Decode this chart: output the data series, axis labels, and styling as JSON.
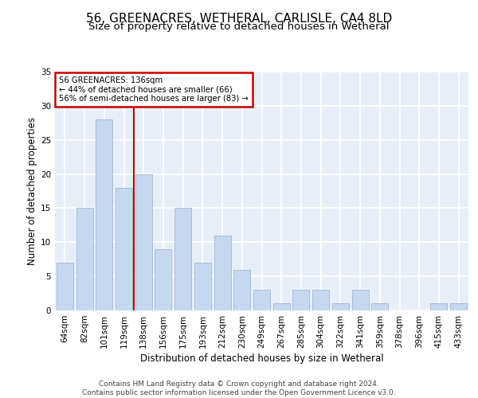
{
  "title1": "56, GREENACRES, WETHERAL, CARLISLE, CA4 8LD",
  "title2": "Size of property relative to detached houses in Wetheral",
  "xlabel": "Distribution of detached houses by size in Wetheral",
  "ylabel": "Number of detached properties",
  "categories": [
    "64sqm",
    "82sqm",
    "101sqm",
    "119sqm",
    "138sqm",
    "156sqm",
    "175sqm",
    "193sqm",
    "212sqm",
    "230sqm",
    "249sqm",
    "267sqm",
    "285sqm",
    "304sqm",
    "322sqm",
    "341sqm",
    "359sqm",
    "378sqm",
    "396sqm",
    "415sqm",
    "433sqm"
  ],
  "values": [
    7,
    15,
    28,
    18,
    20,
    9,
    15,
    7,
    11,
    6,
    3,
    1,
    3,
    3,
    1,
    3,
    1,
    0,
    0,
    1,
    1
  ],
  "bar_color": "#c5d8f0",
  "bar_edge_color": "#a0b8d8",
  "vline_color": "#cc0000",
  "vline_pos": 3.5,
  "annotation_box_text": "56 GREENACRES: 136sqm\n← 44% of detached houses are smaller (66)\n56% of semi-detached houses are larger (83) →",
  "annotation_box_color": "#cc0000",
  "annotation_box_fill": "#ffffff",
  "ylim": [
    0,
    35
  ],
  "yticks": [
    0,
    5,
    10,
    15,
    20,
    25,
    30,
    35
  ],
  "footer_text": "Contains HM Land Registry data © Crown copyright and database right 2024.\nContains public sector information licensed under the Open Government Licence v3.0.",
  "bg_color": "#e8eef8",
  "grid_color": "#ffffff",
  "title1_fontsize": 11,
  "title2_fontsize": 9.5,
  "xlabel_fontsize": 8.5,
  "ylabel_fontsize": 8.5,
  "tick_fontsize": 7.5,
  "footer_fontsize": 6.5
}
